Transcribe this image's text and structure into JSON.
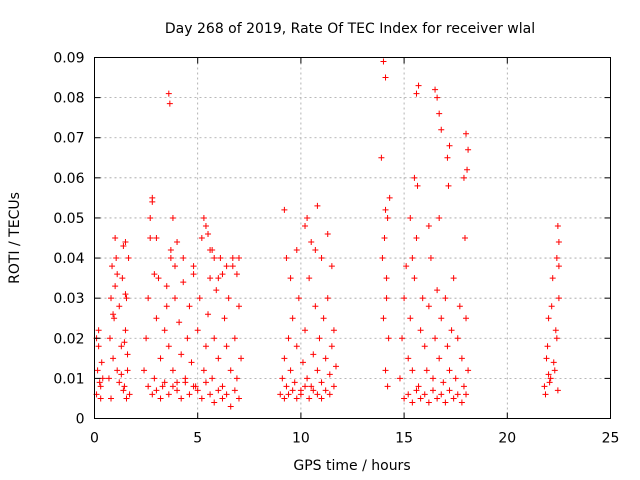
{
  "chart_data": {
    "type": "scatter",
    "title": "Day 268 of 2019, Rate Of TEC Index for receiver wlal",
    "xlabel": "GPS time / hours",
    "ylabel": "ROTI / TECUs",
    "xlim": [
      0,
      25
    ],
    "ylim": [
      0,
      0.09
    ],
    "xticks": [
      0,
      5,
      10,
      15,
      20,
      25
    ],
    "yticks": [
      0,
      0.01,
      0.02,
      0.03,
      0.04,
      0.05,
      0.06,
      0.07,
      0.08,
      0.09
    ],
    "xtick_labels": [
      "0",
      "5",
      "10",
      "15",
      "20",
      "25"
    ],
    "ytick_labels": [
      "0",
      "0.01",
      "0.02",
      "0.03",
      "0.04",
      "0.05",
      "0.06",
      "0.07",
      "0.08",
      "0.09"
    ],
    "grid": true,
    "marker": "+",
    "color": "#ff0000",
    "series": [
      {
        "name": "ROTI",
        "x": [
          0.1,
          0.15,
          0.2,
          0.25,
          0.3,
          0.35,
          0.4,
          0.1,
          0.2,
          0.3,
          0.7,
          0.75,
          0.8,
          0.85,
          0.9,
          0.95,
          1.0,
          1.05,
          1.1,
          1.2,
          1.3,
          1.35,
          1.4,
          1.45,
          1.5,
          1.55,
          1.6,
          1.65,
          1.7,
          0.8,
          1.0,
          1.2,
          1.4,
          1.6,
          0.9,
          1.1,
          1.3,
          1.5,
          1.45,
          1.5,
          1.55,
          2.4,
          2.5,
          2.6,
          2.7,
          2.8,
          2.9,
          3.0,
          3.1,
          3.2,
          3.3,
          3.4,
          3.5,
          3.6,
          3.7,
          3.8,
          3.9,
          4.0,
          4.1,
          4.2,
          4.3,
          4.4,
          4.5,
          4.6,
          4.7,
          4.8,
          4.9,
          5.0,
          5.1,
          5.2,
          5.3,
          5.4,
          5.5,
          5.6,
          5.7,
          5.8,
          5.9,
          6.0,
          6.1,
          6.2,
          6.3,
          6.4,
          6.5,
          6.6,
          6.7,
          6.8,
          6.9,
          7.0,
          7.1,
          2.6,
          2.8,
          3.0,
          3.2,
          3.4,
          3.6,
          3.8,
          4.0,
          4.2,
          4.4,
          4.6,
          4.8,
          5.0,
          5.2,
          5.4,
          5.6,
          5.8,
          6.0,
          6.2,
          6.4,
          6.6,
          6.8,
          7.0,
          2.7,
          2.8,
          2.9,
          3.6,
          3.65,
          3.7,
          3.8,
          3.9,
          4.0,
          5.3,
          5.4,
          5.5,
          5.7,
          5.8,
          6.0,
          6.4,
          6.7,
          6.9,
          7.0,
          3.0,
          3.5,
          4.3,
          4.8,
          5.6,
          6.2,
          9.0,
          9.1,
          9.2,
          9.3,
          9.4,
          9.5,
          9.6,
          9.7,
          9.8,
          9.9,
          10.0,
          10.1,
          10.2,
          10.3,
          10.4,
          10.5,
          10.6,
          10.7,
          10.8,
          10.9,
          11.0,
          11.1,
          11.2,
          11.3,
          11.4,
          11.5,
          11.6,
          11.7,
          9.2,
          9.4,
          9.6,
          9.8,
          10.0,
          10.2,
          10.4,
          10.6,
          10.8,
          11.0,
          11.2,
          11.4,
          11.6,
          9.2,
          9.3,
          9.8,
          10.2,
          10.3,
          10.5,
          10.8,
          11.0,
          11.3,
          11.5,
          9.5,
          10.7,
          13.9,
          14.0,
          14.1,
          14.2,
          14.3,
          13.95,
          14.05,
          14.15,
          14.25,
          14.1,
          14.2,
          14.0,
          14.15,
          14.1,
          14.8,
          14.9,
          15.0,
          15.1,
          15.2,
          15.3,
          15.4,
          15.5,
          15.6,
          15.7,
          15.8,
          15.9,
          16.0,
          16.1,
          16.2,
          16.3,
          16.4,
          16.5,
          16.6,
          16.7,
          16.8,
          16.9,
          17.0,
          17.1,
          17.2,
          17.3,
          17.4,
          17.5,
          17.6,
          17.7,
          17.8,
          17.9,
          18.0,
          18.1,
          15.0,
          15.2,
          15.4,
          15.6,
          15.8,
          16.0,
          16.2,
          16.4,
          16.6,
          16.8,
          17.0,
          17.2,
          17.4,
          17.6,
          17.8,
          18.0,
          15.3,
          15.5,
          15.6,
          15.7,
          16.5,
          16.6,
          16.7,
          16.8,
          17.1,
          17.2,
          17.9,
          18.0,
          18.1,
          15.65,
          16.7,
          17.15,
          17.95,
          18.05,
          15.4,
          16.2,
          21.8,
          21.9,
          22.0,
          22.1,
          22.2,
          22.3,
          22.4,
          22.5,
          21.85,
          21.95,
          22.05,
          22.15,
          22.25,
          22.35,
          22.45,
          22.0,
          22.4,
          22.5,
          22.45,
          22.5
        ],
        "y": [
          0.006,
          0.012,
          0.018,
          0.009,
          0.005,
          0.014,
          0.01,
          0.02,
          0.022,
          0.008,
          0.01,
          0.02,
          0.03,
          0.038,
          0.015,
          0.025,
          0.033,
          0.04,
          0.012,
          0.028,
          0.018,
          0.035,
          0.043,
          0.008,
          0.022,
          0.03,
          0.012,
          0.04,
          0.006,
          0.005,
          0.045,
          0.009,
          0.007,
          0.016,
          0.026,
          0.036,
          0.011,
          0.044,
          0.019,
          0.031,
          0.005,
          0.012,
          0.02,
          0.03,
          0.045,
          0.055,
          0.01,
          0.025,
          0.035,
          0.015,
          0.008,
          0.022,
          0.028,
          0.018,
          0.04,
          0.012,
          0.03,
          0.009,
          0.024,
          0.016,
          0.034,
          0.01,
          0.02,
          0.028,
          0.014,
          0.036,
          0.008,
          0.022,
          0.03,
          0.045,
          0.012,
          0.018,
          0.026,
          0.035,
          0.01,
          0.02,
          0.032,
          0.015,
          0.04,
          0.008,
          0.025,
          0.018,
          0.03,
          0.012,
          0.038,
          0.02,
          0.01,
          0.028,
          0.015,
          0.008,
          0.006,
          0.007,
          0.005,
          0.009,
          0.006,
          0.008,
          0.007,
          0.005,
          0.009,
          0.006,
          0.008,
          0.007,
          0.005,
          0.009,
          0.006,
          0.004,
          0.007,
          0.005,
          0.006,
          0.003,
          0.007,
          0.005,
          0.05,
          0.054,
          0.036,
          0.081,
          0.0785,
          0.042,
          0.05,
          0.038,
          0.044,
          0.05,
          0.048,
          0.046,
          0.042,
          0.04,
          0.035,
          0.038,
          0.04,
          0.036,
          0.04,
          0.045,
          0.033,
          0.04,
          0.038,
          0.042,
          0.036,
          0.006,
          0.01,
          0.015,
          0.008,
          0.02,
          0.012,
          0.025,
          0.009,
          0.018,
          0.03,
          0.007,
          0.014,
          0.022,
          0.01,
          0.035,
          0.008,
          0.016,
          0.028,
          0.012,
          0.02,
          0.009,
          0.025,
          0.015,
          0.03,
          0.011,
          0.018,
          0.022,
          0.013,
          0.005,
          0.006,
          0.007,
          0.005,
          0.006,
          0.008,
          0.005,
          0.007,
          0.006,
          0.005,
          0.007,
          0.006,
          0.008,
          0.052,
          0.04,
          0.042,
          0.048,
          0.05,
          0.044,
          0.053,
          0.04,
          0.046,
          0.038,
          0.035,
          0.042,
          0.065,
          0.089,
          0.085,
          0.05,
          0.055,
          0.04,
          0.045,
          0.03,
          0.02,
          0.012,
          0.008,
          0.025,
          0.035,
          0.052,
          0.01,
          0.02,
          0.03,
          0.038,
          0.015,
          0.025,
          0.012,
          0.035,
          0.045,
          0.008,
          0.022,
          0.03,
          0.018,
          0.012,
          0.028,
          0.04,
          0.01,
          0.02,
          0.032,
          0.015,
          0.025,
          0.009,
          0.03,
          0.018,
          0.012,
          0.022,
          0.035,
          0.01,
          0.02,
          0.028,
          0.015,
          0.008,
          0.025,
          0.012,
          0.005,
          0.006,
          0.004,
          0.007,
          0.005,
          0.006,
          0.004,
          0.007,
          0.005,
          0.006,
          0.004,
          0.007,
          0.005,
          0.006,
          0.004,
          0.006,
          0.05,
          0.06,
          0.081,
          0.083,
          0.082,
          0.08,
          0.076,
          0.072,
          0.065,
          0.068,
          0.06,
          0.071,
          0.067,
          0.058,
          0.05,
          0.058,
          0.045,
          0.062,
          0.04,
          0.048,
          0.008,
          0.015,
          0.025,
          0.01,
          0.035,
          0.012,
          0.02,
          0.03,
          0.006,
          0.018,
          0.009,
          0.028,
          0.014,
          0.022,
          0.007,
          0.011,
          0.04,
          0.044,
          0.048,
          0.038
        ]
      }
    ]
  }
}
